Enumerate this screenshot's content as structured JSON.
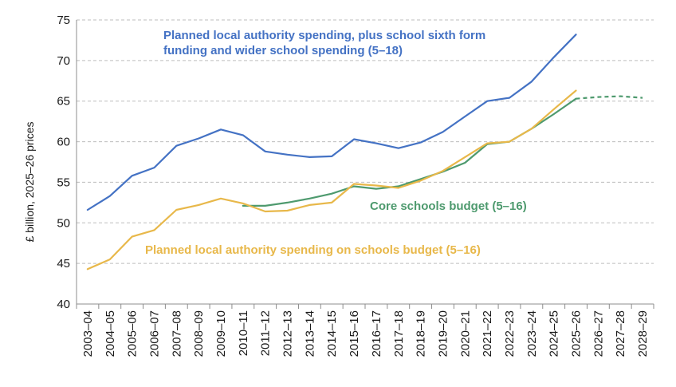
{
  "chart_data": {
    "type": "line",
    "title": "",
    "xlabel": "",
    "ylabel": "£ billion, 2025–26 prices",
    "ylim": [
      40,
      75
    ],
    "yticks": [
      40,
      45,
      50,
      55,
      60,
      65,
      70,
      75
    ],
    "grid": "horizontal-dashed",
    "categories": [
      "2003–04",
      "2004–05",
      "2005–06",
      "2006–07",
      "2007–08",
      "2008–09",
      "2009–10",
      "2010–11",
      "2011–12",
      "2012–13",
      "2013–14",
      "2014–15",
      "2015–16",
      "2016–17",
      "2017–18",
      "2018–19",
      "2019–20",
      "2020–21",
      "2021–22",
      "2022–23",
      "2023–24",
      "2024–25",
      "2025–26",
      "2026–27",
      "2027–28",
      "2028–29"
    ],
    "series": [
      {
        "name": "Planned local authority spending, plus school sixth form funding and wider school spending (5–18)",
        "color": "#4472c4",
        "values": [
          51.6,
          53.3,
          55.8,
          56.8,
          59.5,
          60.4,
          61.5,
          60.8,
          58.8,
          58.4,
          58.1,
          58.2,
          60.3,
          59.8,
          59.2,
          59.9,
          61.2,
          63.1,
          65.0,
          65.4,
          67.4,
          70.4,
          73.2,
          null,
          null,
          null
        ]
      },
      {
        "name": "Core schools budget (5–16)",
        "color": "#4e9a6e",
        "values": [
          null,
          null,
          null,
          null,
          null,
          null,
          null,
          52.1,
          52.1,
          52.5,
          53.0,
          53.6,
          54.5,
          54.2,
          54.5,
          55.4,
          56.3,
          57.4,
          59.7,
          60.0,
          61.6,
          63.4,
          65.3,
          65.5,
          65.6,
          65.4
        ],
        "projected_from_index": 22
      },
      {
        "name": "Planned local authority spending on schools budget (5–16)",
        "color": "#e8b84a",
        "values": [
          44.3,
          45.5,
          48.3,
          49.1,
          51.6,
          52.2,
          53.0,
          52.4,
          51.4,
          51.5,
          52.2,
          52.5,
          54.8,
          54.6,
          54.3,
          55.2,
          56.4,
          58.1,
          59.8,
          60.0,
          61.6,
          64.0,
          66.3,
          null,
          null,
          null
        ]
      }
    ],
    "annotations": [
      {
        "text_lines": [
          "Planned local authority spending, plus school sixth form",
          "funding and wider school spending (5–18)"
        ],
        "color": "#4472c4"
      },
      {
        "text_lines": [
          "Core schools budget (5–16)"
        ],
        "color": "#4e9a6e"
      },
      {
        "text_lines": [
          "Planned local authority spending on schools budget (5–16)"
        ],
        "color": "#e8b84a"
      }
    ]
  }
}
